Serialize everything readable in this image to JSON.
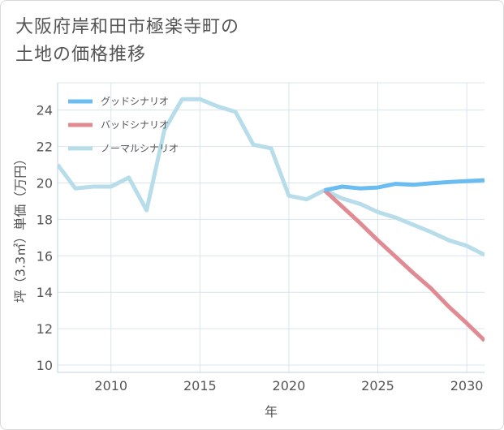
{
  "title_lines": [
    "大阪府岸和田市極楽寺町の",
    "土地の価格推移"
  ],
  "colors": {
    "good": "#6bbcf0",
    "bad": "#e08a92",
    "normal": "#b7dcea",
    "grid": "#d9e4ec",
    "axis_line": "#bcd2e0"
  },
  "chart_data": {
    "type": "line",
    "title": "大阪府岸和田市極楽寺町の土地の価格推移",
    "xlabel": "年",
    "ylabel": "坪（3.3㎡）単価（万円）",
    "xlim": [
      2007,
      2031
    ],
    "ylim": [
      9.6,
      25.5
    ],
    "xticks": [
      2010,
      2015,
      2020,
      2025,
      2030
    ],
    "yticks": [
      10,
      12,
      14,
      16,
      18,
      20,
      22,
      24
    ],
    "legend_position": "top-left",
    "series": [
      {
        "name": "グッドシナリオ",
        "key": "good",
        "x": [
          2022,
          2023,
          2024,
          2025,
          2026,
          2027,
          2028,
          2029,
          2030,
          2031
        ],
        "values": [
          19.6,
          19.8,
          19.7,
          19.75,
          19.95,
          19.9,
          19.98,
          20.05,
          20.1,
          20.15
        ]
      },
      {
        "name": "バッドシナリオ",
        "key": "bad",
        "x": [
          2022,
          2023,
          2024,
          2025,
          2026,
          2027,
          2028,
          2029,
          2030,
          2031
        ],
        "values": [
          19.6,
          18.7,
          17.8,
          16.85,
          15.95,
          15.05,
          14.2,
          13.2,
          12.3,
          11.35
        ]
      },
      {
        "name": "ノーマルシナリオ",
        "key": "normal",
        "x": [
          2007,
          2008,
          2009,
          2010,
          2011,
          2012,
          2013,
          2014,
          2015,
          2016,
          2017,
          2018,
          2019,
          2020,
          2021,
          2022,
          2023,
          2024,
          2025,
          2026,
          2027,
          2028,
          2029,
          2030,
          2031
        ],
        "values": [
          21.0,
          19.7,
          19.8,
          19.8,
          20.3,
          18.5,
          22.9,
          24.6,
          24.6,
          24.2,
          23.9,
          22.1,
          21.9,
          19.3,
          19.1,
          19.6,
          19.15,
          18.85,
          18.4,
          18.1,
          17.7,
          17.3,
          16.85,
          16.55,
          16.05
        ]
      }
    ]
  }
}
